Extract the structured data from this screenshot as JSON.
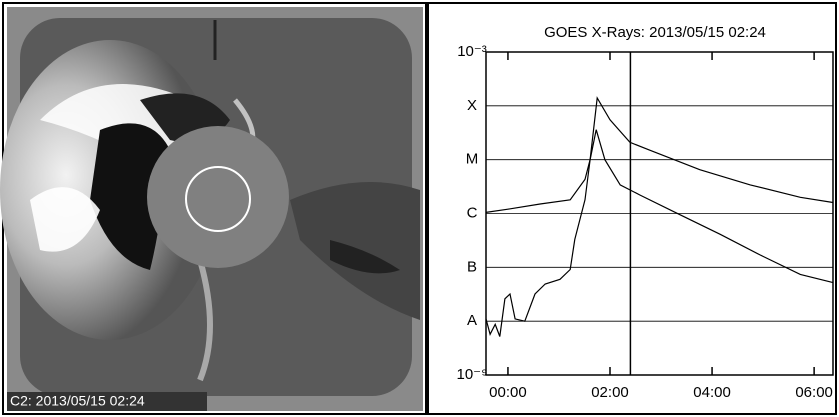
{
  "image": {
    "caption": "C2: 2013/05/15 02:24"
  },
  "chart_data": {
    "type": "line",
    "title": "GOES X-Rays: 2013/05/15 02:24",
    "ylog": true,
    "grid": true,
    "marker_x": 2.4,
    "xlim": [
      -0.43,
      6.37
    ],
    "xticks": [
      {
        "value": 0,
        "label": "00:00"
      },
      {
        "value": 2,
        "label": "02:00"
      },
      {
        "value": 4,
        "label": "04:00"
      },
      {
        "value": 6,
        "label": "06:00"
      }
    ],
    "ylim": [
      1e-09,
      0.001
    ],
    "yticks": [
      {
        "value": 1e-09,
        "label": "10⁻⁹"
      },
      {
        "value": 1e-08,
        "label": "A"
      },
      {
        "value": 1e-07,
        "label": "B"
      },
      {
        "value": 1e-06,
        "label": "C"
      },
      {
        "value": 1e-05,
        "label": "M"
      },
      {
        "value": 0.0001,
        "label": "X"
      },
      {
        "value": 0.001,
        "label": "10⁻³"
      }
    ],
    "series": [
      {
        "color": "#000000",
        "x": [
          -0.43,
          0,
          0.63,
          1.22,
          1.51,
          1.61,
          1.75,
          2.0,
          2.39,
          2.78,
          3.76,
          4.75,
          5.73,
          6.37
        ],
        "values": [
          1.05e-06,
          1.2e-06,
          1.5e-06,
          1.8e-06,
          4.3e-06,
          1e-05,
          0.00014,
          5.5e-05,
          2.1e-05,
          1.5e-05,
          6.5e-06,
          3.4e-06,
          2e-06,
          1.6e-06
        ]
      },
      {
        "color": "#000000",
        "x": [
          -0.43,
          -0.35,
          -0.25,
          -0.16,
          -0.06,
          0.04,
          0.14,
          0.33,
          0.53,
          0.73,
          1.02,
          1.22,
          1.31,
          1.51,
          1.61,
          1.73,
          1.9,
          2.2,
          2.59,
          3.37,
          4.16,
          4.94,
          5.73,
          6.37
        ],
        "values": [
          1.1e-08,
          5.7e-09,
          8.7e-09,
          5.2e-09,
          2.6e-08,
          3.2e-08,
          1.1e-08,
          1e-08,
          3.2e-08,
          4.9e-08,
          6e-08,
          9.1e-08,
          3.3e-07,
          1.8e-06,
          1e-05,
          3.6e-05,
          1e-05,
          3.4e-06,
          2.2e-06,
          9.5e-07,
          4.1e-07,
          1.7e-07,
          7.4e-08,
          5.2e-08
        ]
      }
    ]
  }
}
